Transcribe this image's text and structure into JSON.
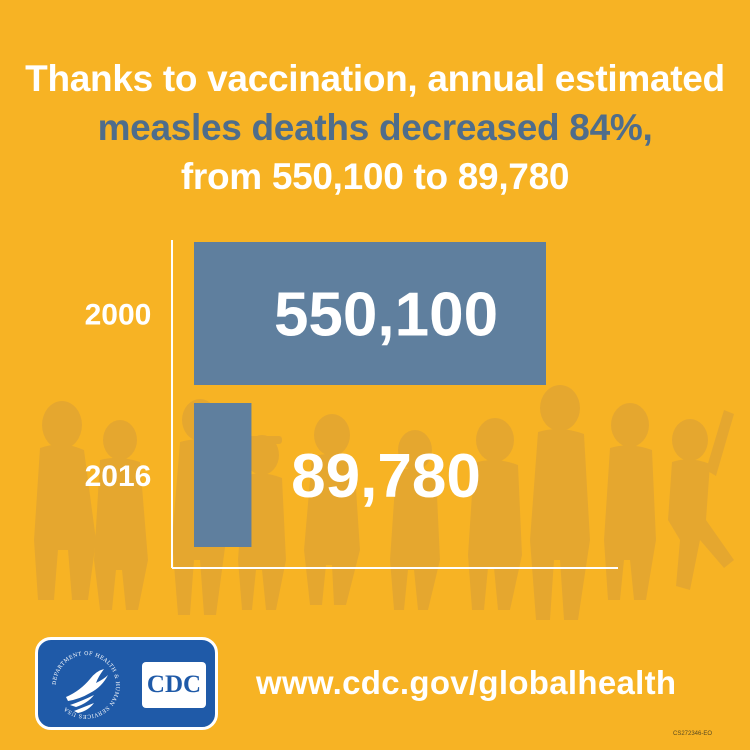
{
  "headline": {
    "line1": "Thanks to vaccination, annual estimated",
    "line2": "measles deaths decreased 84%,",
    "line3": "from 550,100 to 89,780"
  },
  "chart_data": {
    "type": "bar",
    "orientation": "horizontal",
    "categories": [
      "2000",
      "2016"
    ],
    "values": [
      550100,
      89780
    ],
    "data_labels": [
      "550,100",
      "89,780"
    ],
    "xlim": [
      0,
      550100
    ],
    "grid": false,
    "bar_color": "#5f7f9e"
  },
  "footer": {
    "logo_text": "CDC",
    "seal_text": "DEPARTMENT OF HEALTH & HUMAN SERVICES USA",
    "url": "www.cdc.gov/globalhealth",
    "code": "CS272346-EO"
  },
  "colors": {
    "background": "#f7b324",
    "accent_blue": "#4f6d8b",
    "logo_blue": "#1f5aa8",
    "silhouette": "#e5a632"
  }
}
